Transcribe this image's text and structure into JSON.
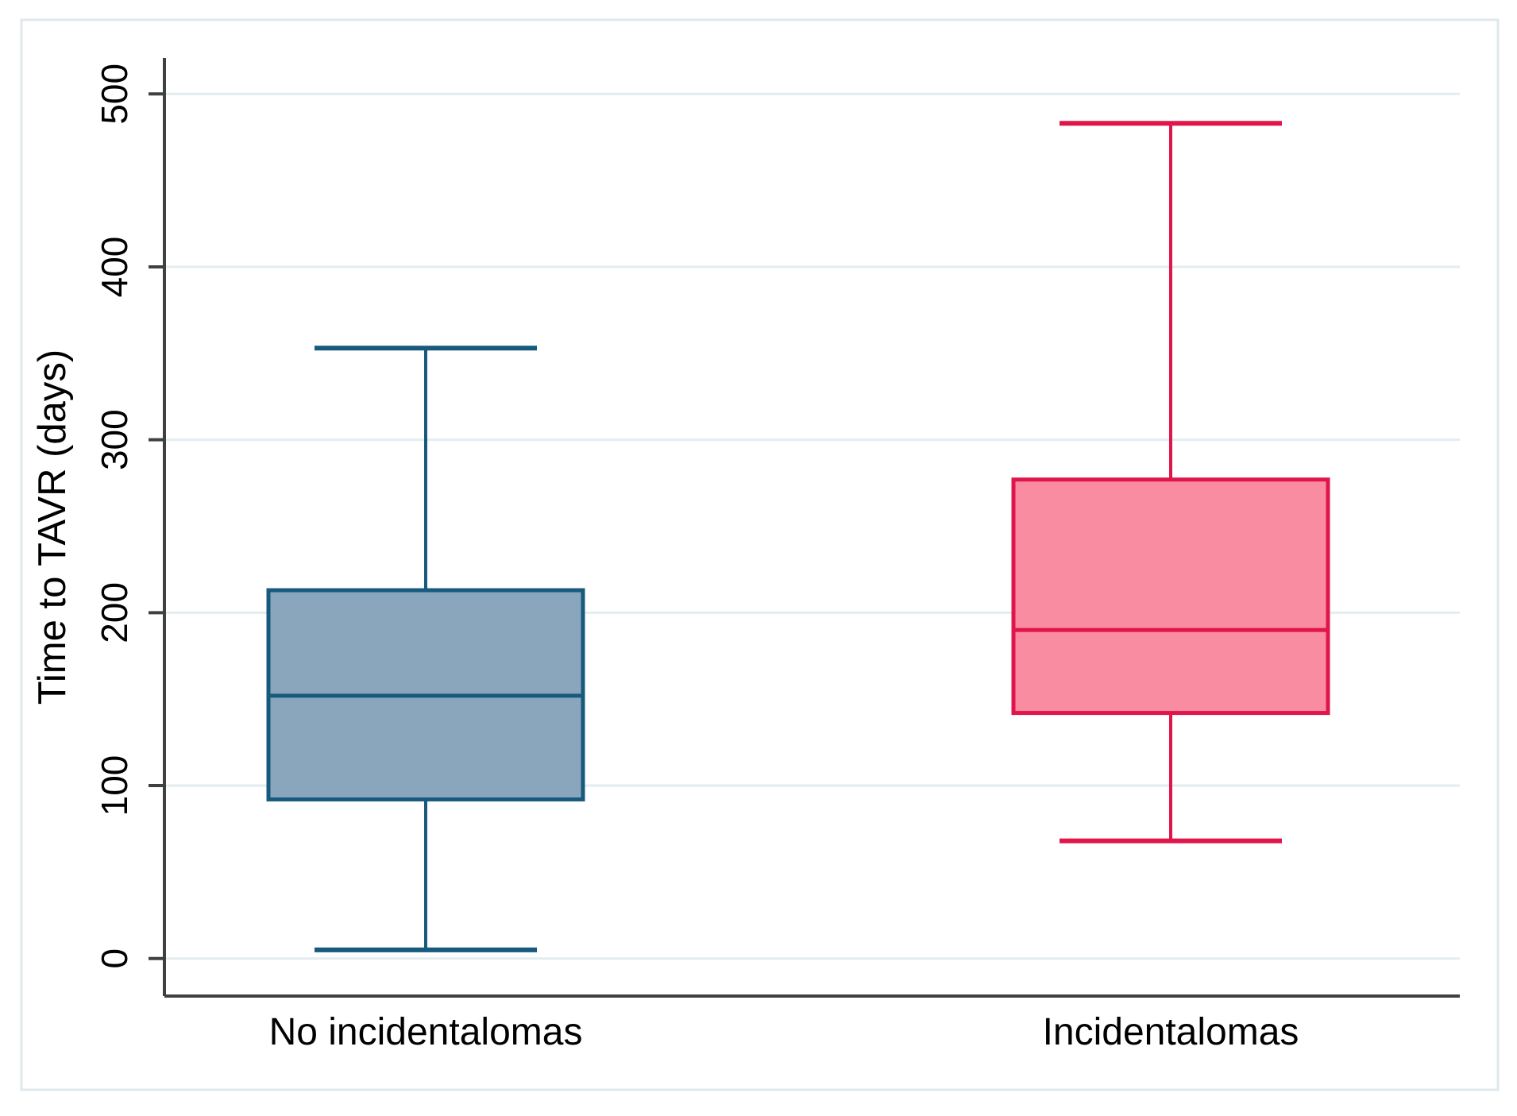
{
  "figure": {
    "background": "#ffffff",
    "border_color": "#dfe9ec"
  },
  "chart_data": {
    "type": "box",
    "title": "",
    "xlabel": "",
    "ylabel": "Time to TAVR (days)",
    "yticks": [
      0,
      100,
      200,
      300,
      400,
      500
    ],
    "ylim": [
      -22,
      521
    ],
    "grid": true,
    "gridline_color": "#e3edf0",
    "axis_color": "#404040",
    "text_color": "#000000",
    "tick_labels_rotated": true,
    "legend": "none",
    "categories": [
      "No incidentalomas",
      "Incidentalomas"
    ],
    "series": [
      {
        "name": "No incidentalomas",
        "lower_whisker": 5,
        "q1": 92,
        "median": 152,
        "q3": 213,
        "upper_whisker": 353,
        "fill": "#8aa6bc",
        "stroke": "#175a7d"
      },
      {
        "name": "Incidentalomas",
        "lower_whisker": 68,
        "q1": 142,
        "median": 190,
        "q3": 277,
        "upper_whisker": 483,
        "fill": "#f98ca0",
        "stroke": "#e0164a"
      }
    ]
  }
}
